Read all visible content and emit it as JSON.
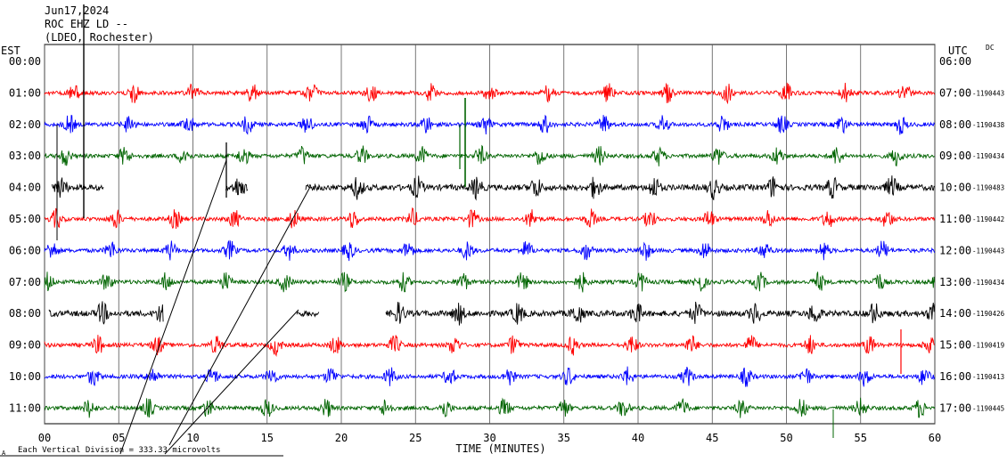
{
  "header": {
    "date": "Jun17,2024",
    "station": "ROC EHZ LD --",
    "network": "(LDEO, Rochester)",
    "left_timezone": "EST",
    "right_timezone": "UTC",
    "corner_tag": "DC"
  },
  "chart_data": {
    "type": "line",
    "title": "Jun17,2024",
    "xlabel": "TIME (MINUTES)",
    "xlim": [
      0,
      60
    ],
    "x_ticks": [
      "00",
      "05",
      "10",
      "15",
      "20",
      "25",
      "30",
      "35",
      "40",
      "45",
      "50",
      "55",
      "60"
    ],
    "left_labels": [
      "00:00",
      "01:00",
      "02:00",
      "03:00",
      "04:00",
      "05:00",
      "06:00",
      "07:00",
      "08:00",
      "09:00",
      "10:00",
      "11:00"
    ],
    "right_labels": [
      "06:00",
      "07:00",
      "08:00",
      "09:00",
      "10:00",
      "11:00",
      "12:00",
      "13:00",
      "14:00",
      "15:00",
      "16:00",
      "17:00"
    ],
    "right_counts": [
      "",
      "-1190443",
      "-1190438",
      "-1190434",
      "-1190483",
      "-1190442",
      "-1190443",
      "-1190434",
      "-1190426",
      "-1190419",
      "-1190413",
      "-1190445"
    ],
    "series_colors": [
      "#ff0000",
      "#0000ff",
      "#006400",
      "#000000"
    ],
    "footer_note": "Each Vertical Division = 333.33 microvolts",
    "footer_mark": "A"
  }
}
